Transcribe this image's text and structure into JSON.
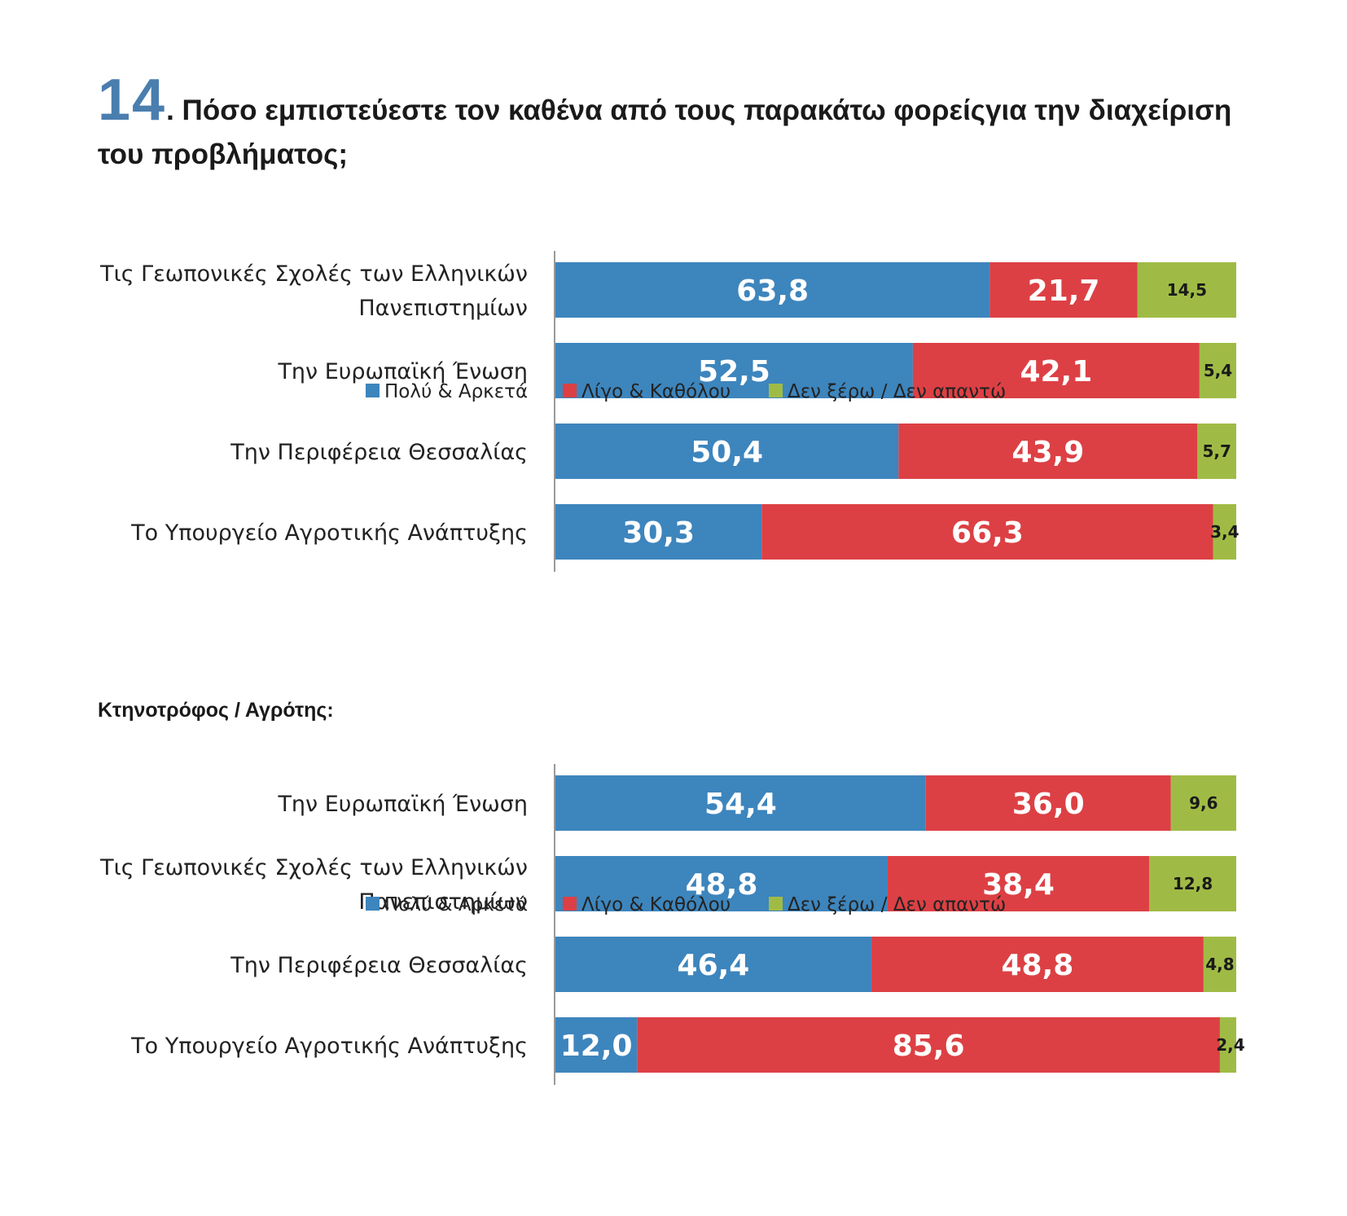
{
  "title": {
    "number": "14",
    "text": ". Πόσο εμπιστεύεστε τον καθένα από τους παρακάτω φορείςγια την διαχείριση του προβλήματος;"
  },
  "subtitle": "Κτηνοτρόφος / Αγρότης:",
  "colors": {
    "series1": "#3d85bd",
    "series2": "#dc4044",
    "series3": "#a0bb45"
  },
  "chart_data": [
    {
      "type": "bar",
      "orientation": "horizontal",
      "stacked": true,
      "categories": [
        [
          "Τις Γεωπονικές Σχολές των Ελληνικών",
          "Πανεπιστημίων"
        ],
        [
          "Την Ευρωπαϊκή Ένωση"
        ],
        [
          "Την Περιφέρεια Θεσσαλίας"
        ],
        [
          "Το Υπουργείο Αγροτικής Ανάπτυξης"
        ]
      ],
      "series": [
        {
          "name": "Πολύ & Αρκετά",
          "values": [
            63.8,
            52.5,
            50.4,
            30.3
          ],
          "labels": [
            "63,8",
            "52,5",
            "50,4",
            "30,3"
          ]
        },
        {
          "name": "Λίγο & Καθόλου",
          "values": [
            21.7,
            42.1,
            43.9,
            66.3
          ],
          "labels": [
            "21,7",
            "42,1",
            "43,9",
            "66,3"
          ]
        },
        {
          "name": "Δεν ξέρω / Δεν απαντώ",
          "values": [
            14.5,
            5.4,
            5.7,
            3.4
          ],
          "labels": [
            "14,5",
            "5,4",
            "5,7",
            "3,4"
          ]
        }
      ],
      "xlim": [
        0,
        100
      ],
      "legend": "bottom"
    },
    {
      "type": "bar",
      "orientation": "horizontal",
      "stacked": true,
      "categories": [
        [
          "Την Ευρωπαϊκή Ένωση"
        ],
        [
          "Τις Γεωπονικές Σχολές των Ελληνικών",
          "Πανεπιστημίων"
        ],
        [
          "Την Περιφέρεια Θεσσαλίας"
        ],
        [
          "Το Υπουργείο Αγροτικής Ανάπτυξης"
        ]
      ],
      "series": [
        {
          "name": "Πολύ & Αρκετά",
          "values": [
            54.4,
            48.8,
            46.4,
            12.0
          ],
          "labels": [
            "54,4",
            "48,8",
            "46,4",
            "12,0"
          ]
        },
        {
          "name": "Λίγο & Καθόλου",
          "values": [
            36.0,
            38.4,
            48.8,
            85.6
          ],
          "labels": [
            "36,0",
            "38,4",
            "48,8",
            "85,6"
          ]
        },
        {
          "name": "Δεν ξέρω / Δεν απαντώ",
          "values": [
            9.6,
            12.8,
            4.8,
            2.4
          ],
          "labels": [
            "9,6",
            "12,8",
            "4,8",
            "2,4"
          ]
        }
      ],
      "xlim": [
        0,
        100
      ],
      "legend": "bottom"
    }
  ]
}
